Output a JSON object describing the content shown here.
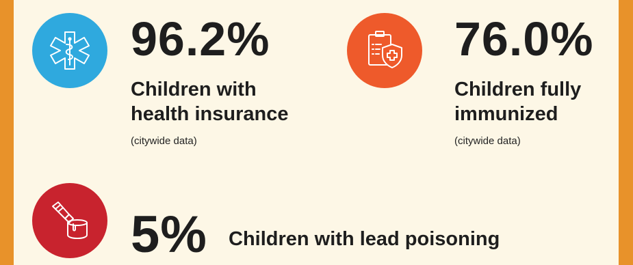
{
  "colors": {
    "frame": "#e8922a",
    "panel": "#fdf7e6",
    "insurance_circle": "#2fa9de",
    "immunized_circle": "#ee5a2b",
    "lead_circle": "#c8232e"
  },
  "stats": {
    "insurance": {
      "icon": "medical-star-of-life-icon",
      "value": "96.2%",
      "label_line1": "Children with",
      "label_line2": "health insurance",
      "note": "(citywide data)"
    },
    "immunized": {
      "icon": "clipboard-shield-cross-icon",
      "value": "76.0%",
      "label_line1": "Children fully",
      "label_line2": "immunized",
      "note": "(citywide data)"
    },
    "lead": {
      "icon": "paint-brush-bucket-icon",
      "value": "5%",
      "label": "Children with lead poisoning"
    }
  }
}
